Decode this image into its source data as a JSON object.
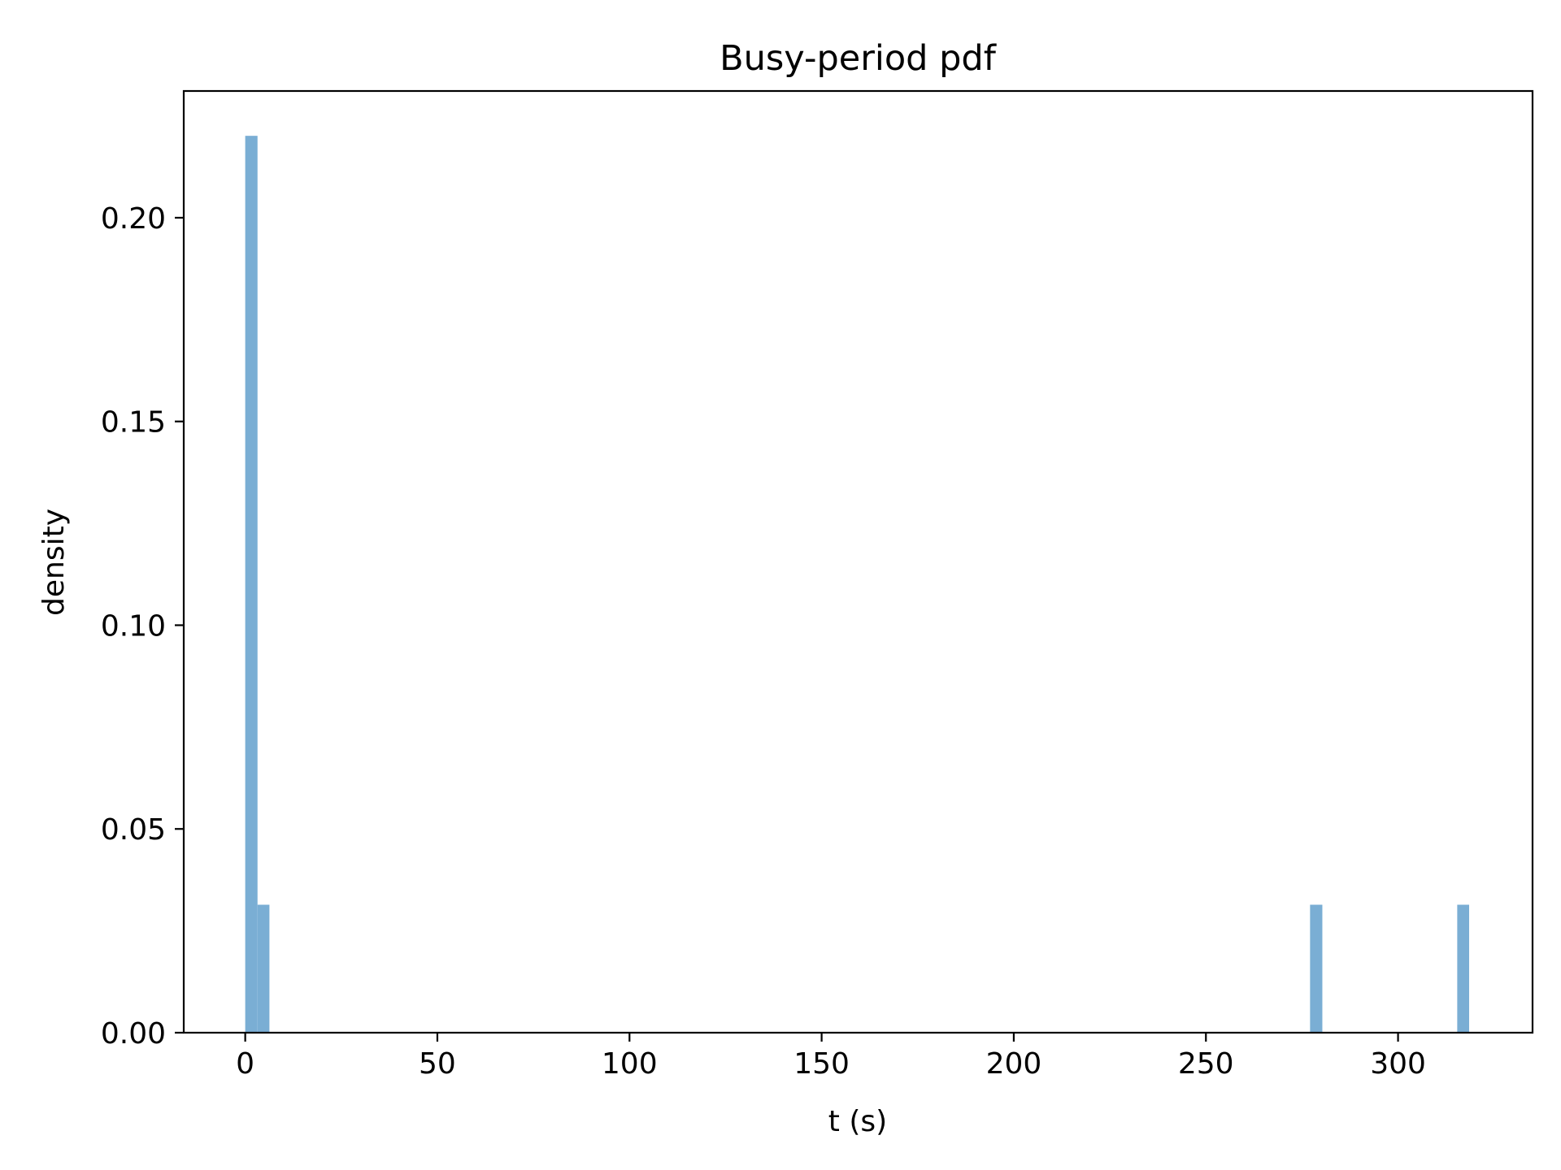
{
  "chart_data": {
    "type": "bar",
    "title": "Busy-period pdf",
    "xlabel": "t (s)",
    "ylabel": "density",
    "xlim": [
      -16,
      335
    ],
    "ylim": [
      0,
      0.2311
    ],
    "x_ticks": [
      0,
      50,
      100,
      150,
      200,
      250,
      300
    ],
    "x_tick_labels": [
      "0",
      "50",
      "100",
      "150",
      "200",
      "250",
      "300"
    ],
    "y_ticks": [
      0,
      0.05,
      0.1,
      0.15,
      0.2
    ],
    "y_tick_labels": [
      "0.00",
      "0.05",
      "0.10",
      "0.15",
      "0.20"
    ],
    "bar_color": "#7aaed4",
    "grid": false,
    "legend": "none",
    "bins": [
      {
        "x0": 0.0,
        "x1": 3.2,
        "density": 0.2201
      },
      {
        "x0": 3.2,
        "x1": 6.3,
        "density": 0.0314
      },
      {
        "x0": 277.1,
        "x1": 280.3,
        "density": 0.0314
      },
      {
        "x0": 315.4,
        "x1": 318.5,
        "density": 0.0314
      }
    ]
  }
}
